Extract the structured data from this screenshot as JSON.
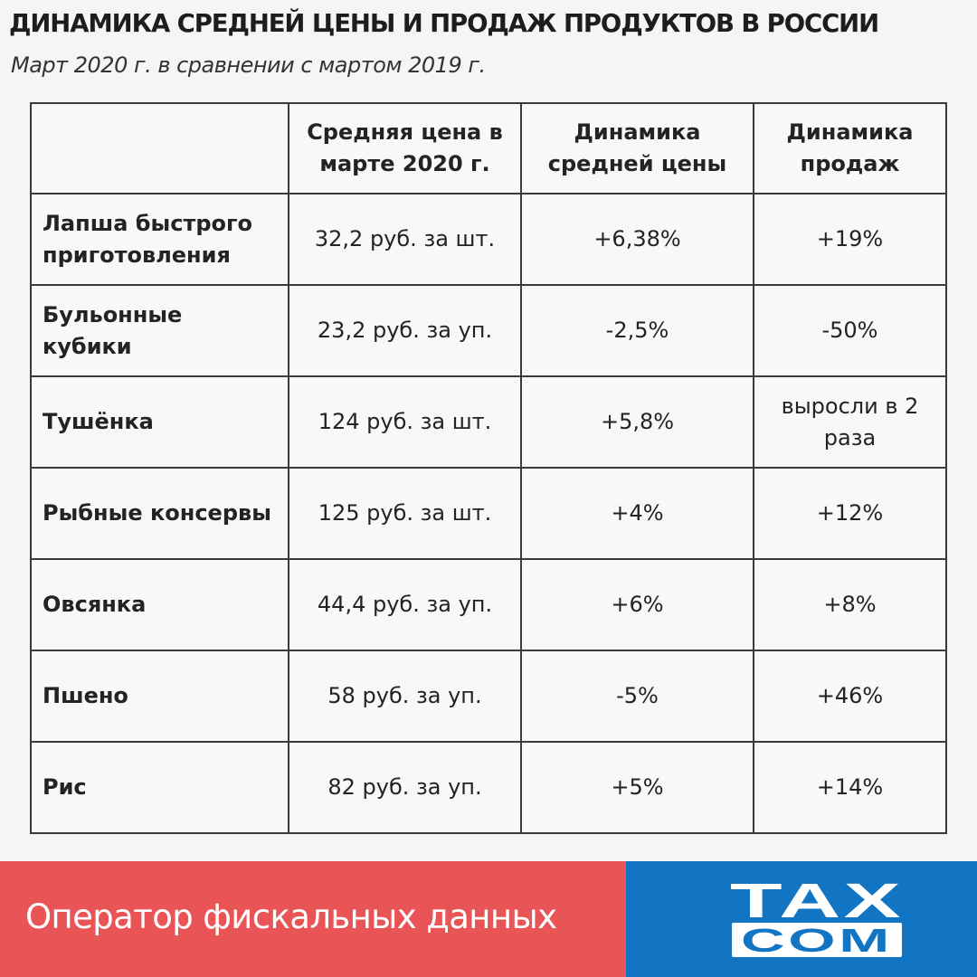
{
  "header": {
    "title": "ДИНАМИКА СРЕДНЕЙ ЦЕНЫ И ПРОДАЖ ПРОДУКТОВ В РОССИИ",
    "subtitle": "Март 2020 г. в сравнении с мартом 2019 г."
  },
  "table": {
    "columns": [
      "",
      "Средняя цена в марте 2020 г.",
      "Динамика средней цены",
      "Динамика продаж"
    ],
    "rows": [
      {
        "name": "Лапша быстрого приготовления",
        "price": "32,2 руб. за шт.",
        "price_change": "+6,38%",
        "sales_change": "+19%"
      },
      {
        "name": "Бульонные кубики",
        "price": "23,2 руб. за уп.",
        "price_change": "-2,5%",
        "sales_change": "-50%"
      },
      {
        "name": "Тушёнка",
        "price": "124 руб. за шт.",
        "price_change": "+5,8%",
        "sales_change": "выросли в 2 раза"
      },
      {
        "name": "Рыбные консервы",
        "price": "125 руб. за шт.",
        "price_change": "+4%",
        "sales_change": "+12%"
      },
      {
        "name": "Овсянка",
        "price": "44,4 руб. за уп.",
        "price_change": "+6%",
        "sales_change": "+8%"
      },
      {
        "name": "Пшено",
        "price": "58 руб. за уп.",
        "price_change": "-5%",
        "sales_change": "+46%"
      },
      {
        "name": "Рис",
        "price": "82 руб. за уп.",
        "price_change": "+5%",
        "sales_change": "+14%"
      }
    ]
  },
  "footer": {
    "text": "Оператор фискальных данных",
    "logo_top": "TAX",
    "logo_bottom": "COM",
    "left_color": "#e95557",
    "right_color": "#1275c4"
  }
}
